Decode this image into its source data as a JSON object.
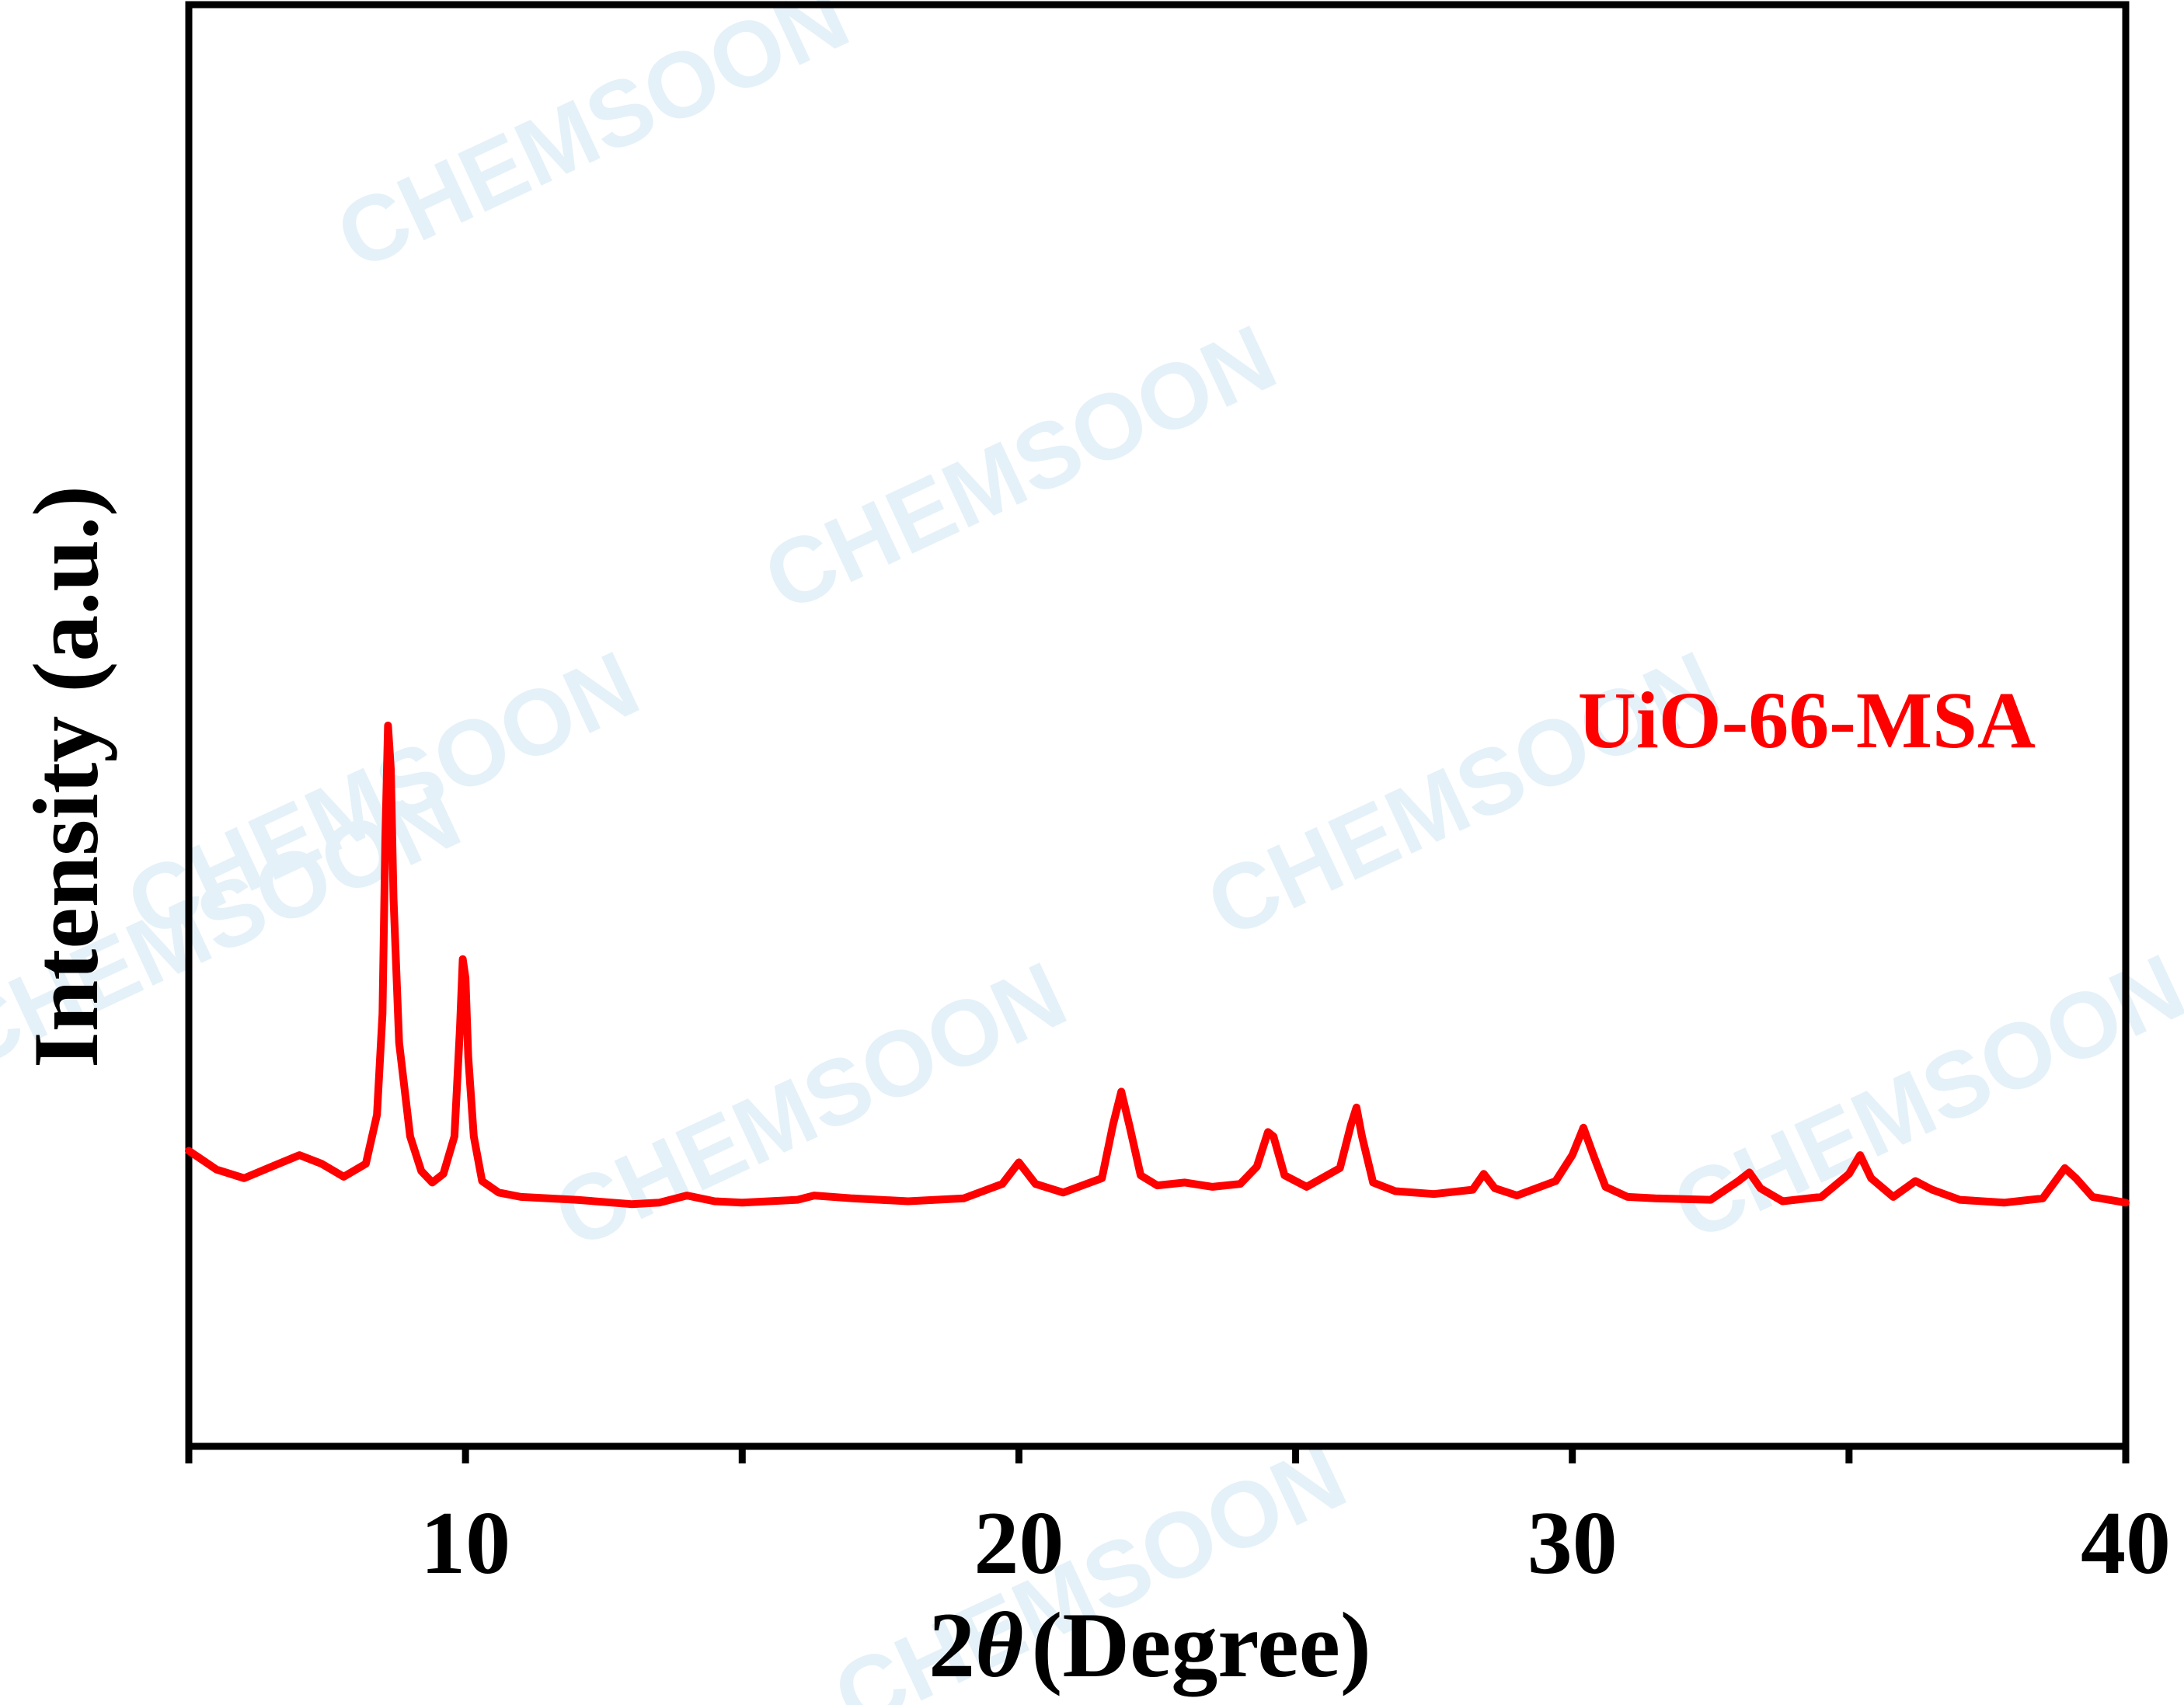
{
  "chart_data": {
    "type": "line",
    "title": "",
    "xlabel_prefix": "2",
    "xlabel_symbol": "θ",
    "xlabel_suffix": "(Degree)",
    "ylabel": "Intensity (a.u.)",
    "xlim": [
      5,
      40
    ],
    "ylim": [
      0,
      100
    ],
    "x_ticks": [
      10,
      20,
      30,
      40
    ],
    "x_minor_ticks": [
      5,
      15,
      25,
      35
    ],
    "grid": false,
    "legend": "none",
    "watermark_text": "CHEMSOON",
    "series": [
      {
        "name": "UiO-66-MSA",
        "color": "#ff0000",
        "x": [
          5.0,
          5.5,
          6.0,
          6.5,
          7.0,
          7.4,
          7.8,
          8.2,
          8.4,
          8.5,
          8.55,
          8.6,
          8.65,
          8.7,
          8.8,
          9.0,
          9.2,
          9.4,
          9.6,
          9.8,
          9.9,
          9.95,
          10.0,
          10.05,
          10.15,
          10.3,
          10.6,
          11.0,
          12.0,
          13.0,
          13.5,
          14.0,
          14.5,
          15.0,
          16.0,
          16.3,
          17.0,
          18.0,
          19.0,
          19.7,
          20.0,
          20.3,
          20.8,
          21.5,
          21.7,
          21.85,
          22.0,
          22.2,
          22.5,
          23.0,
          23.5,
          24.0,
          24.3,
          24.5,
          24.6,
          24.8,
          25.2,
          25.8,
          26.0,
          26.1,
          26.2,
          26.4,
          26.8,
          27.5,
          28.2,
          28.4,
          28.6,
          29.0,
          29.7,
          30.0,
          30.2,
          30.4,
          30.6,
          31.0,
          31.5,
          32.5,
          33.0,
          33.2,
          33.4,
          33.8,
          34.5,
          35.0,
          35.2,
          35.4,
          35.8,
          36.2,
          36.5,
          37.0,
          37.8,
          38.5,
          38.9,
          39.1,
          39.4,
          40.0
        ],
        "y": [
          20.5,
          19.2,
          18.6,
          19.4,
          20.2,
          19.6,
          18.7,
          19.6,
          23.0,
          30.0,
          42.0,
          50.0,
          47.0,
          38.0,
          28.0,
          21.5,
          19.1,
          18.3,
          18.9,
          21.5,
          29.0,
          33.8,
          32.5,
          27.0,
          21.5,
          18.4,
          17.6,
          17.3,
          17.1,
          16.8,
          16.9,
          17.4,
          17.0,
          16.9,
          17.1,
          17.4,
          17.2,
          17.0,
          17.2,
          18.2,
          19.7,
          18.2,
          17.6,
          18.6,
          22.3,
          24.6,
          22.2,
          18.8,
          18.1,
          18.3,
          18.0,
          18.2,
          19.4,
          21.8,
          21.5,
          18.8,
          18.0,
          19.3,
          22.3,
          23.5,
          21.5,
          18.3,
          17.7,
          17.5,
          17.8,
          18.9,
          17.9,
          17.4,
          18.4,
          20.2,
          22.1,
          20.0,
          18.0,
          17.3,
          17.2,
          17.1,
          18.4,
          19.0,
          17.9,
          17.0,
          17.3,
          18.9,
          20.2,
          18.6,
          17.3,
          18.4,
          17.8,
          17.1,
          16.9,
          17.2,
          19.3,
          18.6,
          17.3,
          16.9
        ]
      }
    ]
  }
}
